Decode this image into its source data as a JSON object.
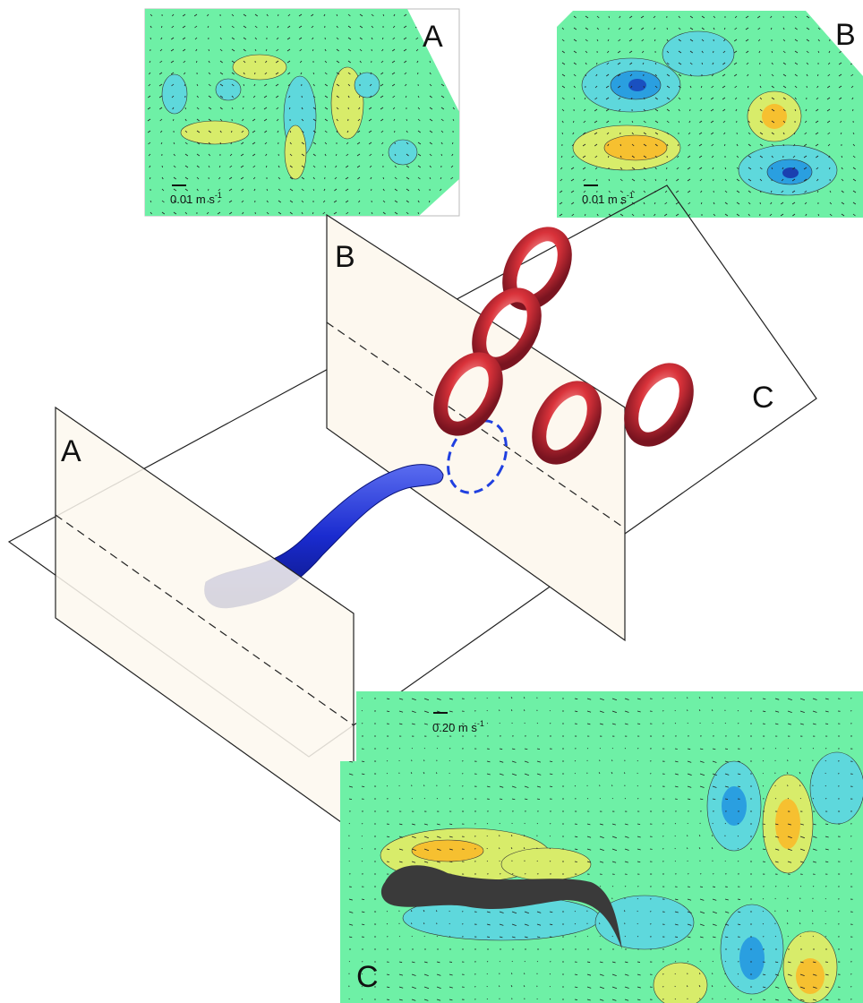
{
  "panels": [
    {
      "label": "A",
      "scale": {
        "text": "0.01 m s",
        "sup": "-1"
      }
    },
    {
      "label": "B",
      "scale": {
        "text": "0.01 m s",
        "sup": "-1"
      }
    },
    {
      "label": "C",
      "scale": {
        "text": "0.20 m s",
        "sup": "-1"
      }
    }
  ],
  "planes": [
    {
      "label": "A"
    },
    {
      "label": "B"
    },
    {
      "label": "C"
    }
  ]
}
